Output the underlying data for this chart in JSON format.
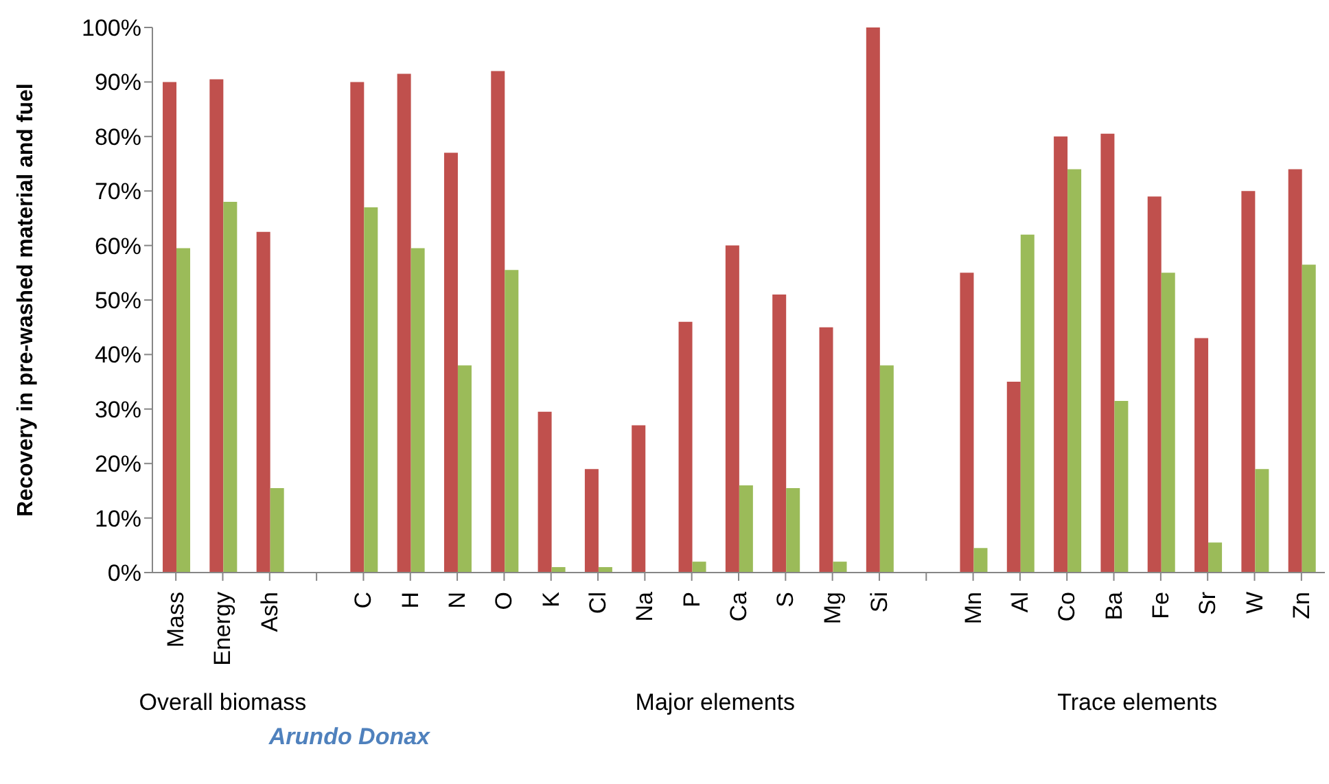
{
  "chart_data": {
    "type": "bar",
    "ylabel": "Recovery in pre-washed material and fuel",
    "categories": [
      "Mass",
      "Energy",
      "Ash",
      null,
      "C",
      "H",
      "N",
      "O",
      "K",
      "Cl",
      "Na",
      "P",
      "Ca",
      "S",
      "Mg",
      "Si",
      null,
      "Mn",
      "Al",
      "Co",
      "Ba",
      "Fe",
      "Sr",
      "W",
      "Zn"
    ],
    "series": [
      {
        "color": "#c0504d",
        "values": [
          90,
          90.5,
          62.5,
          null,
          90,
          91.5,
          77,
          92,
          29.5,
          19,
          27,
          46,
          60,
          51,
          45,
          100,
          null,
          55,
          35,
          80,
          80.5,
          69,
          43,
          70,
          74
        ]
      },
      {
        "color": "#9bbb59",
        "values": [
          59.5,
          68,
          15.5,
          null,
          67,
          59.5,
          38,
          55.5,
          1,
          1,
          0,
          2,
          16,
          15.5,
          2,
          38,
          null,
          4.5,
          62,
          74,
          31.5,
          55,
          5.5,
          19,
          56.5
        ]
      }
    ],
    "ylim": [
      0,
      100
    ],
    "yticks": [
      {
        "value": 0,
        "label": "0%"
      },
      {
        "value": 10,
        "label": "10%"
      },
      {
        "value": 20,
        "label": "20%"
      },
      {
        "value": 30,
        "label": "30%"
      },
      {
        "value": 40,
        "label": "40%"
      },
      {
        "value": 50,
        "label": "50%"
      },
      {
        "value": 60,
        "label": "60%"
      },
      {
        "value": 70,
        "label": "70%"
      },
      {
        "value": 80,
        "label": "80%"
      },
      {
        "value": 90,
        "label": "90%"
      },
      {
        "value": 100,
        "label": "100%"
      }
    ],
    "grid": false,
    "legend": false,
    "annotations": [
      "Overall biomass",
      "Major elements",
      "Trace elements",
      "Arundo Donax"
    ]
  }
}
